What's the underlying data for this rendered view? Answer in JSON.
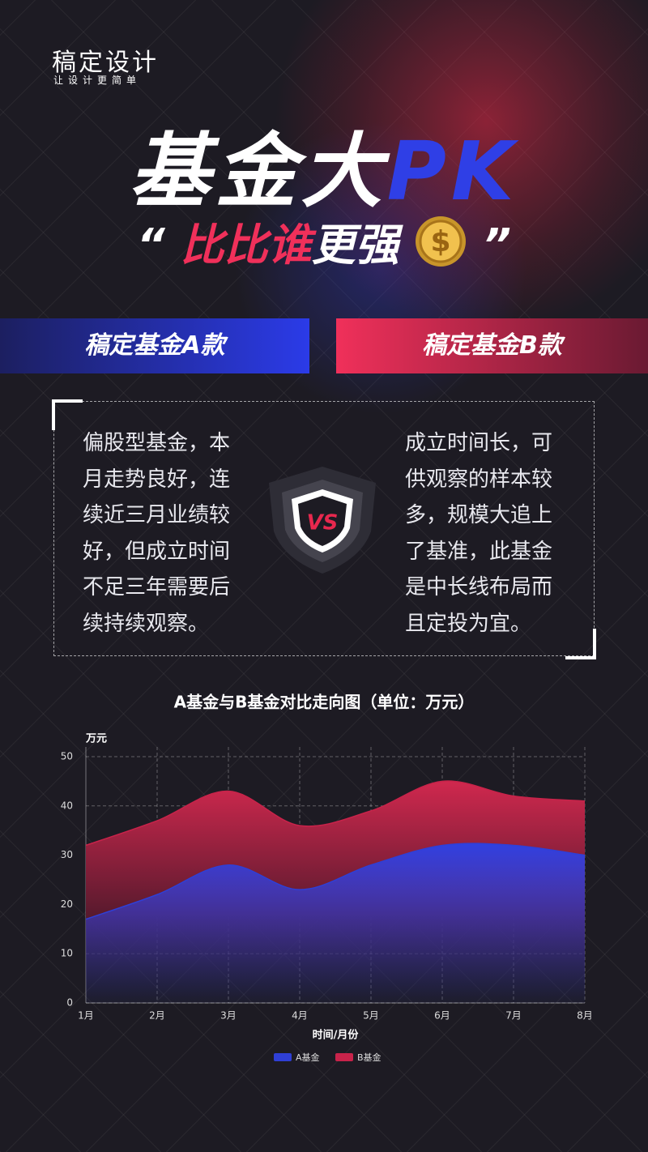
{
  "brand": {
    "name": "稿定设计",
    "slogan": "让设计更简单"
  },
  "headline": {
    "main": "基金大",
    "accent": "PK",
    "open_quote": "“",
    "sub_red": "比比谁",
    "sub_white": "更强",
    "close_quote": "”"
  },
  "funds": {
    "a_name": "稿定基金A款",
    "b_name": "稿定基金B款",
    "a_text": [
      "偏股型基金，本",
      "月走势良好，连",
      "续近三月业绩较",
      "好，但成立时间",
      "不足三年需要后",
      "续持续观察。"
    ],
    "b_text": [
      "成立时间长，可",
      "供观察的样本较",
      "多，规模大追上",
      "了基准，此基金",
      "是中长线布局而",
      "且定投为宜。"
    ]
  },
  "chart_data": {
    "type": "area",
    "title": "A基金与B基金对比走向图（单位：万元）",
    "y_label": "万元",
    "x_label": "时间/月份",
    "categories": [
      "1月",
      "2月",
      "3月",
      "4月",
      "5月",
      "6月",
      "7月",
      "8月"
    ],
    "series": [
      {
        "name": "A基金",
        "color": "#2f3fd6",
        "values": [
          17,
          22,
          28,
          23,
          28,
          32,
          32,
          30
        ]
      },
      {
        "name": "B基金",
        "color": "#c8234a",
        "values": [
          32,
          37,
          43,
          36,
          39,
          45,
          42,
          41
        ]
      }
    ],
    "ylim": [
      0,
      50
    ],
    "yticks": [
      0,
      10,
      20,
      30,
      40,
      50
    ],
    "grid": true,
    "legend": "bottom"
  }
}
